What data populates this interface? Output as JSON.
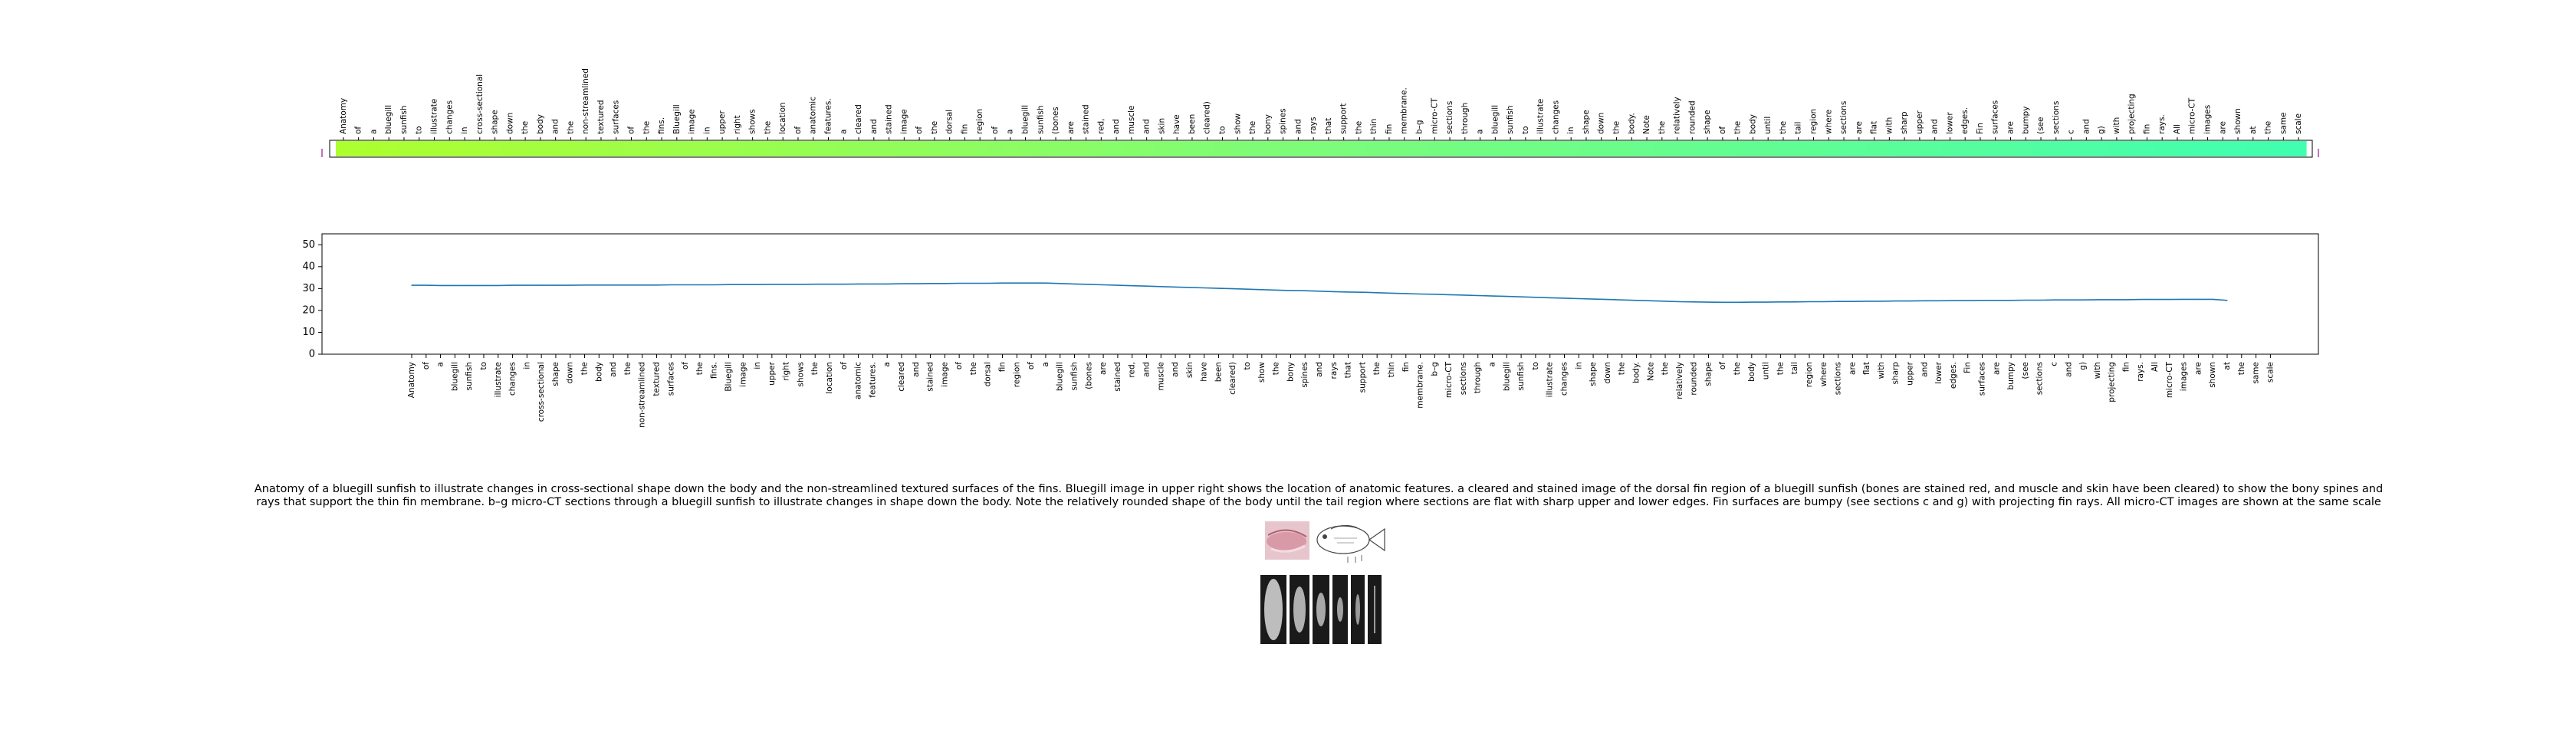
{
  "caption": "Anatomy of a bluegill sunfish to illustrate changes in cross-sectional shape down the body and the non-streamlined textured surfaces of the fins. Bluegill image in upper right shows the location of anatomic features. a cleared and stained image of the dorsal fin region of a bluegill sunfish (bones are stained red, and muscle and skin have been cleared) to show the bony spines and rays that support the thin fin membrane. b–g micro-CT sections through a bluegill sunfish to illustrate changes in shape down the body. Note the relatively rounded shape of the body until the tail region where sections are flat with sharp upper and lower edges. Fin surfaces are bumpy (see sections c and g) with projecting fin rays. All micro-CT images are shown at the same scale",
  "chart_data": [
    {
      "type": "heatmap",
      "colorscale": [
        "#adff2f",
        "#7cfc7a",
        "#40ffb0"
      ],
      "categories": [
        "Anatomy",
        "of",
        "a",
        "bluegill",
        "sunfish",
        "to",
        "illustrate",
        "changes",
        "in",
        "cross-sectional",
        "shape",
        "down",
        "the",
        "body",
        "and",
        "the",
        "non-streamlined",
        "textured",
        "surfaces",
        "of",
        "the",
        "fins.",
        "Bluegill",
        "image",
        "in",
        "upper",
        "right",
        "shows",
        "the",
        "location",
        "of",
        "anatomic",
        "features.",
        "a",
        "cleared",
        "and",
        "stained",
        "image",
        "of",
        "the",
        "dorsal",
        "fin",
        "region",
        "of",
        "a",
        "bluegill",
        "sunfish",
        "(bones",
        "are",
        "stained",
        "red,",
        "and",
        "muscle",
        "and",
        "skin",
        "have",
        "been",
        "cleared)",
        "to",
        "show",
        "the",
        "bony",
        "spines",
        "and",
        "rays",
        "that",
        "support",
        "the",
        "thin",
        "fin",
        "membrane.",
        "b–g",
        "micro-CT",
        "sections",
        "through",
        "a",
        "bluegill",
        "sunfish",
        "to",
        "illustrate",
        "changes",
        "in",
        "shape",
        "down",
        "the",
        "body.",
        "Note",
        "the",
        "relatively",
        "rounded",
        "shape",
        "of",
        "the",
        "body",
        "until",
        "the",
        "tail",
        "region",
        "where",
        "sections",
        "are",
        "flat",
        "with",
        "sharp",
        "upper",
        "and",
        "lower",
        "edges.",
        "Fin",
        "surfaces",
        "are",
        "bumpy",
        "(see",
        "sections",
        "c",
        "and",
        "g)",
        "with",
        "projecting",
        "fin",
        "rays.",
        "All",
        "micro-CT",
        "images",
        "are",
        "shown",
        "at",
        "the",
        "same",
        "scale"
      ]
    },
    {
      "type": "line",
      "ylim": [
        0,
        55
      ],
      "yticks": [
        0,
        10,
        20,
        30,
        40,
        50
      ],
      "grid": false,
      "series": [
        {
          "color": "#1f77b4",
          "values": [
            31.5,
            31.5,
            31.4,
            31.4,
            31.4,
            31.4,
            31.4,
            31.5,
            31.5,
            31.5,
            31.5,
            31.5,
            31.6,
            31.6,
            31.6,
            31.6,
            31.6,
            31.6,
            31.7,
            31.7,
            31.7,
            31.7,
            31.8,
            31.8,
            31.8,
            31.9,
            31.9,
            31.9,
            32.0,
            32.0,
            32.0,
            32.1,
            32.1,
            32.1,
            32.2,
            32.2,
            32.3,
            32.3,
            32.4,
            32.4,
            32.4,
            32.5,
            32.5,
            32.5,
            32.5,
            32.3,
            32.1,
            31.9,
            31.7,
            31.5,
            31.3,
            31.1,
            30.9,
            30.7,
            30.5,
            30.3,
            30.1,
            29.9,
            29.7,
            29.5,
            29.3,
            29.1,
            29.0,
            28.8,
            28.6,
            28.4,
            28.3,
            28.1,
            27.9,
            27.7,
            27.5,
            27.4,
            27.2,
            27.0,
            26.8,
            26.6,
            26.4,
            26.2,
            26.0,
            25.8,
            25.6,
            25.4,
            25.2,
            25.0,
            24.8,
            24.6,
            24.4,
            24.2,
            24.0,
            23.9,
            23.8,
            23.7,
            23.7,
            23.8,
            23.8,
            23.9,
            23.9,
            24.0,
            24.0,
            24.1,
            24.1,
            24.2,
            24.2,
            24.3,
            24.3,
            24.4,
            24.4,
            24.5,
            24.5,
            24.6,
            24.6,
            24.6,
            24.7,
            24.7,
            24.8,
            24.8,
            24.8,
            24.9,
            24.9,
            24.9,
            25.0,
            25.0,
            25.0,
            25.1,
            25.1,
            25.1,
            24.6
          ]
        }
      ]
    }
  ],
  "thumbnails": [
    "cleared-stained-fin-photo",
    "bluegill-sketch",
    "micro-ct-section-b",
    "micro-ct-section-c",
    "micro-ct-section-d",
    "micro-ct-section-e",
    "micro-ct-section-f",
    "micro-ct-section-g"
  ]
}
